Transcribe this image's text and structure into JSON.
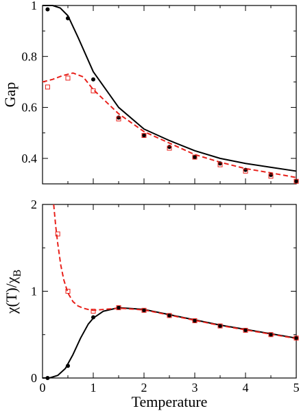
{
  "chart_data": [
    {
      "type": "line",
      "title": "",
      "xlabel": "",
      "ylabel": "Gap",
      "xlim": [
        0,
        5
      ],
      "ylim": [
        0.3,
        1.0
      ],
      "xticks": [
        0,
        1,
        2,
        3,
        4,
        5
      ],
      "xtick_labels": [
        "0",
        "1",
        "2",
        "3",
        "4",
        "5"
      ],
      "xtick_labels_visible": false,
      "yticks": [
        0.4,
        0.6,
        0.8,
        1.0
      ],
      "ytick_labels": [
        "0.4",
        "0.6",
        "0.8",
        "1"
      ],
      "grid": false,
      "legend": "none",
      "series": [
        {
          "kind": "line",
          "style": "solid",
          "color": "#000000",
          "x": [
            0,
            0.2,
            0.35,
            0.5,
            0.7,
            1.0,
            1.5,
            2.0,
            2.5,
            3.0,
            3.5,
            4.0,
            4.5,
            5.0
          ],
          "y": [
            1.0,
            1.0,
            0.99,
            0.96,
            0.875,
            0.74,
            0.6,
            0.515,
            0.47,
            0.43,
            0.4,
            0.38,
            0.365,
            0.35
          ]
        },
        {
          "kind": "line",
          "style": "dashed",
          "color": "#e8201a",
          "x": [
            0,
            0.2,
            0.4,
            0.6,
            0.8,
            1.0,
            1.5,
            2.0,
            2.5,
            3.0,
            3.5,
            4.0,
            4.5,
            5.0
          ],
          "y": [
            0.7,
            0.71,
            0.725,
            0.735,
            0.72,
            0.67,
            0.575,
            0.505,
            0.46,
            0.415,
            0.385,
            0.36,
            0.343,
            0.325
          ]
        },
        {
          "kind": "markers",
          "marker": "filled-circle",
          "color": "#000000",
          "x": [
            0.1,
            0.5,
            1.0,
            1.5,
            2.0,
            2.5,
            3.0,
            3.5,
            4.0,
            4.5,
            5.0
          ],
          "y": [
            0.985,
            0.95,
            0.71,
            0.56,
            0.49,
            0.445,
            0.405,
            0.38,
            0.355,
            0.335,
            0.31
          ]
        },
        {
          "kind": "markers",
          "marker": "open-square",
          "color": "#e8201a",
          "x": [
            0.1,
            0.5,
            1.0,
            1.5,
            2.0,
            2.5,
            3.0,
            3.5,
            4.0,
            4.5,
            5.0
          ],
          "y": [
            0.68,
            0.715,
            0.665,
            0.555,
            0.49,
            0.44,
            0.405,
            0.375,
            0.35,
            0.33,
            0.31
          ]
        }
      ]
    },
    {
      "type": "line",
      "title": "",
      "xlabel": "Temperature",
      "ylabel": "χ(T)/χ",
      "ylabel_subscript": "B",
      "xlim": [
        0,
        5
      ],
      "ylim": [
        0,
        2
      ],
      "xticks": [
        0,
        1,
        2,
        3,
        4,
        5
      ],
      "xtick_labels": [
        "0",
        "1",
        "2",
        "3",
        "4",
        "5"
      ],
      "yticks": [
        0,
        1,
        2
      ],
      "ytick_labels": [
        "0",
        "1",
        "2"
      ],
      "grid": false,
      "legend": "none",
      "series": [
        {
          "kind": "line",
          "style": "solid",
          "color": "#000000",
          "x": [
            0,
            0.15,
            0.3,
            0.45,
            0.6,
            0.75,
            0.9,
            1.0,
            1.2,
            1.5,
            2.0,
            2.5,
            3.0,
            3.5,
            4.0,
            4.5,
            5.0
          ],
          "y": [
            0,
            0.003,
            0.03,
            0.11,
            0.27,
            0.46,
            0.62,
            0.69,
            0.77,
            0.81,
            0.79,
            0.73,
            0.67,
            0.61,
            0.56,
            0.51,
            0.46
          ]
        },
        {
          "kind": "line",
          "style": "dashed",
          "color": "#e8201a",
          "x": [
            0.22,
            0.26,
            0.3,
            0.36,
            0.42,
            0.5,
            0.6,
            0.7,
            0.8,
            0.9,
            1.0,
            1.2,
            1.5,
            2.0,
            2.5,
            3.0,
            3.5,
            4.0,
            4.5,
            5.0
          ],
          "y": [
            2.0,
            1.75,
            1.55,
            1.3,
            1.13,
            0.98,
            0.88,
            0.83,
            0.805,
            0.79,
            0.78,
            0.79,
            0.805,
            0.785,
            0.725,
            0.665,
            0.605,
            0.555,
            0.505,
            0.455
          ]
        },
        {
          "kind": "markers",
          "marker": "filled-circle",
          "color": "#000000",
          "x": [
            0.1,
            0.5,
            1.0,
            1.5,
            2.0,
            2.5,
            3.0,
            3.5,
            4.0,
            4.5,
            5.0
          ],
          "y": [
            0.0,
            0.14,
            0.7,
            0.81,
            0.78,
            0.72,
            0.66,
            0.6,
            0.55,
            0.5,
            0.46
          ]
        },
        {
          "kind": "markers",
          "marker": "open-square",
          "color": "#e8201a",
          "x": [
            0.3,
            0.5,
            1.0,
            1.5,
            2.0,
            2.5,
            3.0,
            3.5,
            4.0,
            4.5,
            5.0
          ],
          "y": [
            1.66,
            1.0,
            0.77,
            0.81,
            0.78,
            0.72,
            0.66,
            0.6,
            0.55,
            0.5,
            0.46
          ]
        }
      ]
    }
  ]
}
